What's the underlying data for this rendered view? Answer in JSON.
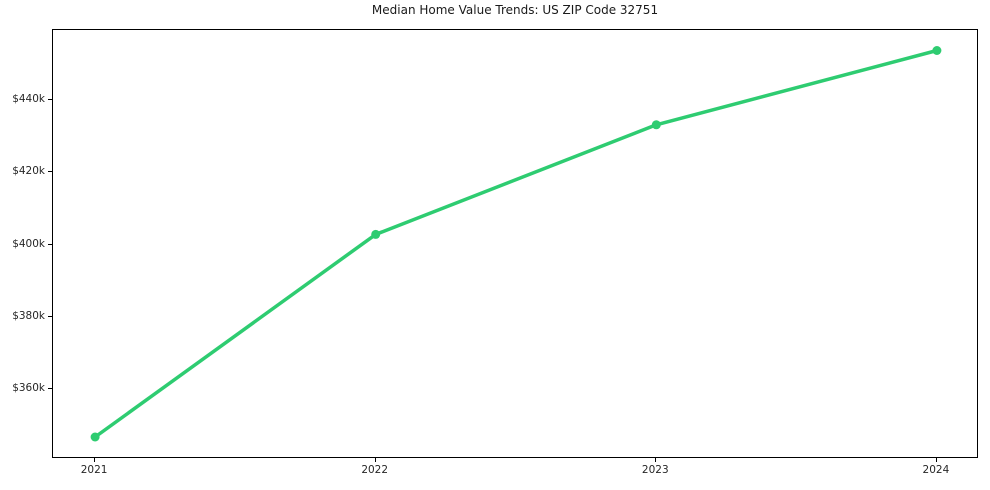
{
  "chart": {
    "title": "Median Home Value Trends: US ZIP Code 32751",
    "colors": {
      "line": "#2ecc71",
      "marker": "#2ecc71",
      "spine": "#000000",
      "tick_text": "#262626",
      "title_text": "#1a1a1a",
      "background": "#ffffff"
    }
  },
  "chart_data": {
    "type": "line",
    "title": "Median Home Value Trends: US ZIP Code 32751",
    "x": [
      2021,
      2022,
      2023,
      2024
    ],
    "series": [
      {
        "name": "Median Home Value",
        "values": [
          346600,
          402800,
          433200,
          453800
        ]
      }
    ],
    "xlabel": "",
    "ylabel": "",
    "xlim": [
      2020.85,
      2024.15
    ],
    "ylim": [
      340500,
      459500
    ],
    "xticks": {
      "values": [
        2021,
        2022,
        2023,
        2024
      ],
      "labels": [
        "2021",
        "2022",
        "2023",
        "2024"
      ]
    },
    "yticks": {
      "values": [
        360000,
        380000,
        400000,
        420000,
        440000
      ],
      "labels": [
        "$360k",
        "$380k",
        "$400k",
        "$420k",
        "$440k"
      ]
    },
    "grid": false,
    "legend_position": "none",
    "line_width": 3.5,
    "marker": "circle",
    "marker_radius": 4.5
  }
}
